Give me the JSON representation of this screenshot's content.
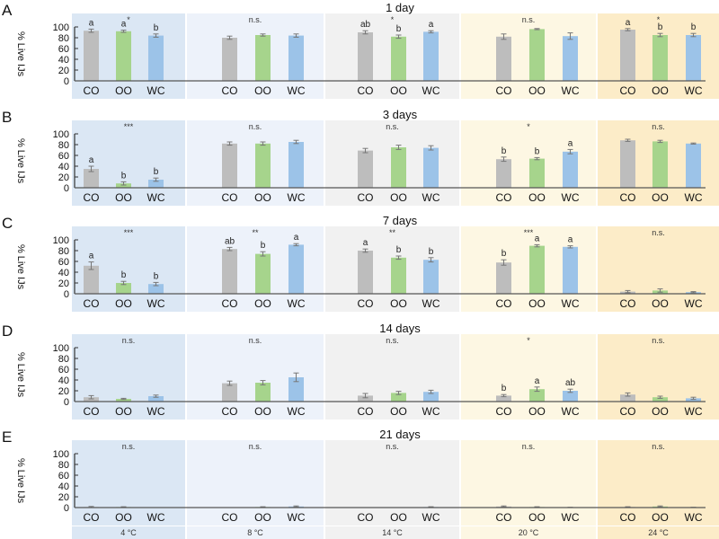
{
  "chart_data": {
    "type": "bar",
    "ylabel": "% Live IJs",
    "ylim": [
      0,
      100
    ],
    "yticks": [
      0,
      20,
      40,
      60,
      80,
      100
    ],
    "categories": [
      "CO",
      "OO",
      "WC"
    ],
    "series_colors": {
      "CO": "#bdbdbd",
      "OO": "#a6d48c",
      "WC": "#9cc3e8"
    },
    "temperatures": [
      "4 °C",
      "8 °C",
      "14 °C",
      "20 °C",
      "24 °C"
    ],
    "temperature_colors": [
      "#dbe7f4",
      "#edf2fa",
      "#f1f1f1",
      "#fdf7e3",
      "#fcecc8"
    ],
    "rows": [
      {
        "panel": "A",
        "title": "1 day",
        "groups": [
          {
            "temperature": "4 °C",
            "significance": "*",
            "values": [
              93,
              92,
              84
            ],
            "errors": [
              3,
              2,
              3
            ],
            "letters": [
              "a",
              "a",
              "b"
            ]
          },
          {
            "temperature": "8 °C",
            "significance": "n.s.",
            "values": [
              80,
              85,
              84
            ],
            "errors": [
              3,
              2,
              3
            ],
            "letters": [
              "",
              "",
              ""
            ]
          },
          {
            "temperature": "14 °C",
            "significance": "*",
            "values": [
              90,
              82,
              91
            ],
            "errors": [
              3,
              3,
              2
            ],
            "letters": [
              "ab",
              "b",
              "a"
            ]
          },
          {
            "temperature": "20 °C",
            "significance": "n.s.",
            "values": [
              82,
              96,
              83
            ],
            "errors": [
              5,
              1,
              6
            ],
            "letters": [
              "",
              "",
              ""
            ]
          },
          {
            "temperature": "24 °C",
            "significance": "*",
            "values": [
              95,
              85,
              85
            ],
            "errors": [
              2,
              3,
              3
            ],
            "letters": [
              "a",
              "b",
              "b"
            ]
          }
        ]
      },
      {
        "panel": "B",
        "title": "3 days",
        "groups": [
          {
            "temperature": "4 °C",
            "significance": "***",
            "values": [
              35,
              8,
              15
            ],
            "errors": [
              5,
              3,
              3
            ],
            "letters": [
              "a",
              "b",
              "b"
            ]
          },
          {
            "temperature": "8 °C",
            "significance": "n.s.",
            "values": [
              82,
              82,
              85
            ],
            "errors": [
              3,
              3,
              3
            ],
            "letters": [
              "",
              "",
              ""
            ]
          },
          {
            "temperature": "14 °C",
            "significance": "n.s.",
            "values": [
              69,
              75,
              74
            ],
            "errors": [
              4,
              4,
              4
            ],
            "letters": [
              "",
              "",
              ""
            ]
          },
          {
            "temperature": "20 °C",
            "significance": "*",
            "values": [
              53,
              54,
              67
            ],
            "errors": [
              4,
              2,
              4
            ],
            "letters": [
              "b",
              "b",
              "a"
            ]
          },
          {
            "temperature": "24 °C",
            "significance": "n.s.",
            "values": [
              88,
              86,
              82
            ],
            "errors": [
              2,
              2,
              1
            ],
            "letters": [
              "",
              "",
              ""
            ]
          }
        ]
      },
      {
        "panel": "C",
        "title": "7 days",
        "groups": [
          {
            "temperature": "4 °C",
            "significance": "***",
            "values": [
              52,
              20,
              18
            ],
            "errors": [
              7,
              3,
              3
            ],
            "letters": [
              "a",
              "b",
              "b"
            ]
          },
          {
            "temperature": "8 °C",
            "significance": "**",
            "values": [
              83,
              74,
              91
            ],
            "errors": [
              3,
              4,
              2
            ],
            "letters": [
              "ab",
              "b",
              "a"
            ]
          },
          {
            "temperature": "14 °C",
            "significance": "**",
            "values": [
              80,
              67,
              63
            ],
            "errors": [
              3,
              3,
              4
            ],
            "letters": [
              "a",
              "b",
              "b"
            ]
          },
          {
            "temperature": "20 °C",
            "significance": "***",
            "values": [
              58,
              89,
              87
            ],
            "errors": [
              5,
              2,
              2
            ],
            "letters": [
              "b",
              "a",
              "a"
            ]
          },
          {
            "temperature": "24 °C",
            "significance": "n.s.",
            "values": [
              4,
              6,
              3
            ],
            "errors": [
              2,
              3,
              1
            ],
            "letters": [
              "",
              "",
              ""
            ]
          }
        ]
      },
      {
        "panel": "D",
        "title": "14 days",
        "groups": [
          {
            "temperature": "4 °C",
            "significance": "n.s.",
            "values": [
              8,
              5,
              10
            ],
            "errors": [
              3,
              1,
              2
            ],
            "letters": [
              "",
              "",
              ""
            ]
          },
          {
            "temperature": "8 °C",
            "significance": "n.s.",
            "values": [
              34,
              35,
              45
            ],
            "errors": [
              4,
              4,
              8
            ],
            "letters": [
              "",
              "",
              ""
            ]
          },
          {
            "temperature": "14 °C",
            "significance": "n.s.",
            "values": [
              11,
              16,
              18
            ],
            "errors": [
              4,
              3,
              3
            ],
            "letters": [
              "",
              "",
              ""
            ]
          },
          {
            "temperature": "20 °C",
            "significance": "*",
            "values": [
              11,
              23,
              20
            ],
            "errors": [
              2,
              4,
              3
            ],
            "letters": [
              "b",
              "a",
              "ab"
            ]
          },
          {
            "temperature": "24 °C",
            "significance": "n.s.",
            "values": [
              13,
              8,
              6
            ],
            "errors": [
              3,
              2,
              2
            ],
            "letters": [
              "",
              "",
              ""
            ]
          }
        ]
      },
      {
        "panel": "E",
        "title": "21 days",
        "groups": [
          {
            "temperature": "4 °C",
            "significance": "n.s.",
            "values": [
              1,
              1,
              0
            ],
            "errors": [
              1,
              0.5,
              0
            ],
            "letters": [
              "",
              "",
              ""
            ]
          },
          {
            "temperature": "8 °C",
            "significance": "n.s.",
            "values": [
              0,
              1,
              2
            ],
            "errors": [
              0,
              0.5,
              1
            ],
            "letters": [
              "",
              "",
              ""
            ]
          },
          {
            "temperature": "14 °C",
            "significance": "n.s.",
            "values": [
              0,
              0,
              1
            ],
            "errors": [
              0,
              0,
              0.5
            ],
            "letters": [
              "",
              "",
              ""
            ]
          },
          {
            "temperature": "20 °C",
            "significance": "n.s.",
            "values": [
              2,
              1,
              0
            ],
            "errors": [
              1,
              0.5,
              0.5
            ],
            "letters": [
              "",
              "",
              ""
            ]
          },
          {
            "temperature": "24 °C",
            "significance": "n.s.",
            "values": [
              1,
              2,
              0
            ],
            "errors": [
              0.5,
              1,
              0.5
            ],
            "letters": [
              "",
              "",
              ""
            ]
          }
        ]
      }
    ]
  }
}
